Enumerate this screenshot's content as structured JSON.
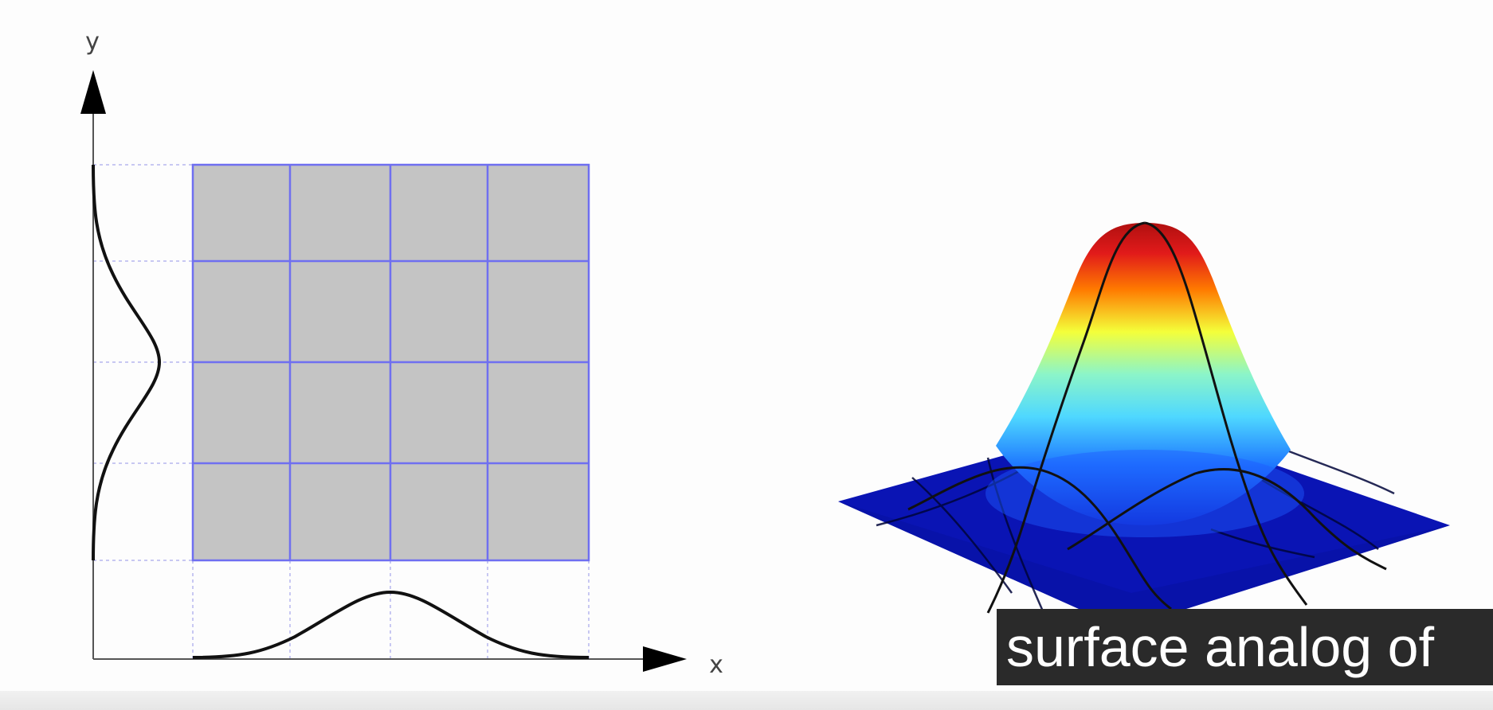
{
  "diagram_2d": {
    "x_axis_label": "x",
    "y_axis_label": "y",
    "grid_rows": 4,
    "grid_cols": 4,
    "grid_fill": "#c4c4c4",
    "grid_line_color": "#6f6ff0",
    "curve_color": "#111111"
  },
  "diagram_3d": {
    "colormap": [
      "#00008c",
      "#0000ff",
      "#00aaff",
      "#5ff0ff",
      "#f0ff3c",
      "#ffaa00",
      "#e11a1a"
    ],
    "base_color": "#0a14b4"
  },
  "caption": {
    "text": "surface analog of"
  }
}
